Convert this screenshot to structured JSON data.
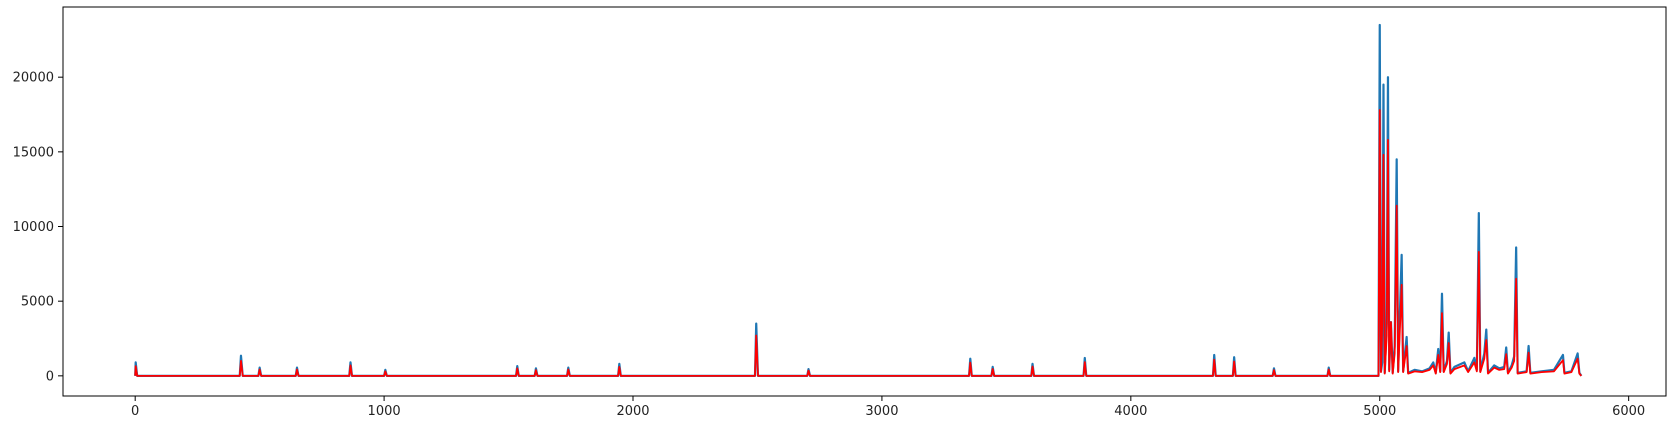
{
  "chart_data": {
    "type": "line",
    "title": "",
    "xlabel": "",
    "ylabel": "",
    "xlim": [
      -290,
      6150
    ],
    "ylim": [
      -1350,
      24700
    ],
    "xticks": [
      0,
      1000,
      2000,
      3000,
      4000,
      5000,
      6000
    ],
    "xtick_labels": [
      "0",
      "1000",
      "2000",
      "3000",
      "4000",
      "5000",
      "6000"
    ],
    "yticks": [
      0,
      5000,
      10000,
      15000,
      20000
    ],
    "ytick_labels": [
      "0",
      "5000",
      "10000",
      "15000",
      "20000"
    ],
    "grid": false,
    "legend": "none",
    "x_range": [
      0,
      5810
    ],
    "series": [
      {
        "color": "#1f77b4",
        "points": [
          [
            0,
            0
          ],
          [
            2,
            900
          ],
          [
            8,
            0
          ],
          [
            420,
            0
          ],
          [
            425,
            1350
          ],
          [
            432,
            0
          ],
          [
            495,
            0
          ],
          [
            500,
            550
          ],
          [
            506,
            0
          ],
          [
            645,
            0
          ],
          [
            650,
            550
          ],
          [
            656,
            0
          ],
          [
            860,
            0
          ],
          [
            865,
            900
          ],
          [
            871,
            0
          ],
          [
            1000,
            0
          ],
          [
            1005,
            400
          ],
          [
            1011,
            0
          ],
          [
            1530,
            0
          ],
          [
            1535,
            650
          ],
          [
            1541,
            0
          ],
          [
            1605,
            0
          ],
          [
            1610,
            500
          ],
          [
            1616,
            0
          ],
          [
            1735,
            0
          ],
          [
            1740,
            550
          ],
          [
            1746,
            0
          ],
          [
            1940,
            0
          ],
          [
            1945,
            800
          ],
          [
            1951,
            0
          ],
          [
            2490,
            0
          ],
          [
            2495,
            3500
          ],
          [
            2502,
            0
          ],
          [
            2700,
            0
          ],
          [
            2705,
            450
          ],
          [
            2711,
            0
          ],
          [
            3350,
            0
          ],
          [
            3355,
            1150
          ],
          [
            3361,
            0
          ],
          [
            3440,
            0
          ],
          [
            3445,
            600
          ],
          [
            3451,
            0
          ],
          [
            3600,
            0
          ],
          [
            3605,
            800
          ],
          [
            3611,
            0
          ],
          [
            3810,
            0
          ],
          [
            3815,
            1200
          ],
          [
            3821,
            0
          ],
          [
            4330,
            0
          ],
          [
            4335,
            1400
          ],
          [
            4341,
            0
          ],
          [
            4410,
            0
          ],
          [
            4415,
            1250
          ],
          [
            4421,
            0
          ],
          [
            4570,
            0
          ],
          [
            4575,
            500
          ],
          [
            4581,
            0
          ],
          [
            4790,
            0
          ],
          [
            4795,
            550
          ],
          [
            4801,
            0
          ],
          [
            4995,
            0
          ],
          [
            5000,
            23500
          ],
          [
            5005,
            300
          ],
          [
            5010,
            900
          ],
          [
            5015,
            19500
          ],
          [
            5020,
            200
          ],
          [
            5028,
            3500
          ],
          [
            5033,
            20000
          ],
          [
            5038,
            400
          ],
          [
            5045,
            3600
          ],
          [
            5052,
            200
          ],
          [
            5060,
            2000
          ],
          [
            5068,
            14500
          ],
          [
            5074,
            300
          ],
          [
            5088,
            8100
          ],
          [
            5094,
            300
          ],
          [
            5108,
            2600
          ],
          [
            5114,
            200
          ],
          [
            5140,
            400
          ],
          [
            5170,
            300
          ],
          [
            5200,
            500
          ],
          [
            5215,
            900
          ],
          [
            5225,
            200
          ],
          [
            5235,
            1800
          ],
          [
            5243,
            300
          ],
          [
            5250,
            5500
          ],
          [
            5257,
            300
          ],
          [
            5270,
            1000
          ],
          [
            5277,
            2900
          ],
          [
            5284,
            200
          ],
          [
            5300,
            600
          ],
          [
            5340,
            900
          ],
          [
            5355,
            300
          ],
          [
            5380,
            1200
          ],
          [
            5390,
            400
          ],
          [
            5398,
            10900
          ],
          [
            5404,
            300
          ],
          [
            5420,
            1500
          ],
          [
            5428,
            3100
          ],
          [
            5435,
            200
          ],
          [
            5460,
            700
          ],
          [
            5480,
            500
          ],
          [
            5500,
            600
          ],
          [
            5508,
            1900
          ],
          [
            5515,
            200
          ],
          [
            5530,
            700
          ],
          [
            5540,
            1300
          ],
          [
            5548,
            8600
          ],
          [
            5554,
            200
          ],
          [
            5590,
            300
          ],
          [
            5598,
            2000
          ],
          [
            5605,
            200
          ],
          [
            5650,
            300
          ],
          [
            5700,
            400
          ],
          [
            5736,
            1400
          ],
          [
            5742,
            200
          ],
          [
            5770,
            300
          ],
          [
            5795,
            1500
          ],
          [
            5802,
            200
          ],
          [
            5810,
            0
          ]
        ]
      },
      {
        "color": "#ff0000",
        "points": [
          [
            0,
            0
          ],
          [
            2,
            650
          ],
          [
            8,
            0
          ],
          [
            420,
            0
          ],
          [
            425,
            1000
          ],
          [
            432,
            0
          ],
          [
            495,
            0
          ],
          [
            500,
            420
          ],
          [
            506,
            0
          ],
          [
            645,
            0
          ],
          [
            650,
            420
          ],
          [
            656,
            0
          ],
          [
            860,
            0
          ],
          [
            865,
            700
          ],
          [
            871,
            0
          ],
          [
            1000,
            0
          ],
          [
            1005,
            300
          ],
          [
            1011,
            0
          ],
          [
            1530,
            0
          ],
          [
            1535,
            500
          ],
          [
            1541,
            0
          ],
          [
            1605,
            0
          ],
          [
            1610,
            380
          ],
          [
            1616,
            0
          ],
          [
            1735,
            0
          ],
          [
            1740,
            420
          ],
          [
            1746,
            0
          ],
          [
            1940,
            0
          ],
          [
            1945,
            600
          ],
          [
            1951,
            0
          ],
          [
            2490,
            0
          ],
          [
            2495,
            2700
          ],
          [
            2502,
            0
          ],
          [
            2700,
            0
          ],
          [
            2705,
            350
          ],
          [
            2711,
            0
          ],
          [
            3350,
            0
          ],
          [
            3355,
            880
          ],
          [
            3361,
            0
          ],
          [
            3440,
            0
          ],
          [
            3445,
            460
          ],
          [
            3451,
            0
          ],
          [
            3600,
            0
          ],
          [
            3605,
            620
          ],
          [
            3611,
            0
          ],
          [
            3810,
            0
          ],
          [
            3815,
            920
          ],
          [
            3821,
            0
          ],
          [
            4330,
            0
          ],
          [
            4335,
            1080
          ],
          [
            4341,
            0
          ],
          [
            4410,
            0
          ],
          [
            4415,
            960
          ],
          [
            4421,
            0
          ],
          [
            4570,
            0
          ],
          [
            4575,
            380
          ],
          [
            4581,
            0
          ],
          [
            4790,
            0
          ],
          [
            4795,
            420
          ],
          [
            4801,
            0
          ],
          [
            4995,
            0
          ],
          [
            5000,
            17800
          ],
          [
            5005,
            250
          ],
          [
            5010,
            3600
          ],
          [
            5015,
            14800
          ],
          [
            5020,
            150
          ],
          [
            5028,
            2700
          ],
          [
            5033,
            15800
          ],
          [
            5038,
            300
          ],
          [
            5045,
            3600
          ],
          [
            5052,
            150
          ],
          [
            5060,
            1500
          ],
          [
            5068,
            11400
          ],
          [
            5074,
            250
          ],
          [
            5088,
            6100
          ],
          [
            5094,
            250
          ],
          [
            5108,
            2000
          ],
          [
            5114,
            150
          ],
          [
            5140,
            300
          ],
          [
            5170,
            250
          ],
          [
            5200,
            400
          ],
          [
            5215,
            700
          ],
          [
            5225,
            150
          ],
          [
            5235,
            1400
          ],
          [
            5243,
            250
          ],
          [
            5250,
            4200
          ],
          [
            5257,
            250
          ],
          [
            5270,
            800
          ],
          [
            5277,
            2200
          ],
          [
            5284,
            150
          ],
          [
            5300,
            450
          ],
          [
            5340,
            700
          ],
          [
            5355,
            250
          ],
          [
            5380,
            900
          ],
          [
            5390,
            300
          ],
          [
            5398,
            8300
          ],
          [
            5404,
            250
          ],
          [
            5420,
            1150
          ],
          [
            5428,
            2400
          ],
          [
            5435,
            150
          ],
          [
            5460,
            550
          ],
          [
            5480,
            400
          ],
          [
            5500,
            450
          ],
          [
            5508,
            1450
          ],
          [
            5515,
            150
          ],
          [
            5530,
            550
          ],
          [
            5540,
            1000
          ],
          [
            5548,
            6500
          ],
          [
            5554,
            150
          ],
          [
            5590,
            250
          ],
          [
            5598,
            1550
          ],
          [
            5605,
            150
          ],
          [
            5650,
            250
          ],
          [
            5700,
            300
          ],
          [
            5736,
            1050
          ],
          [
            5742,
            150
          ],
          [
            5770,
            250
          ],
          [
            5795,
            1150
          ],
          [
            5802,
            150
          ],
          [
            5810,
            0
          ]
        ]
      }
    ]
  }
}
